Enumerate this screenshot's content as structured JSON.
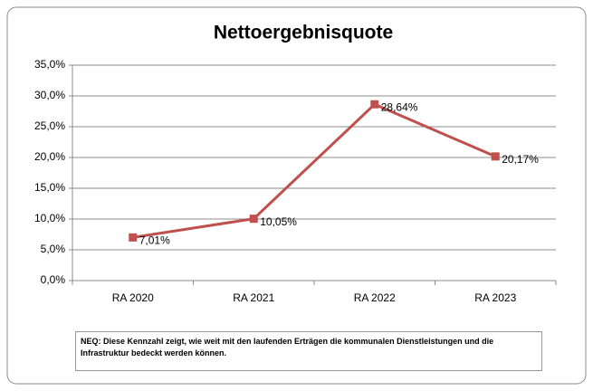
{
  "chart_data": {
    "type": "line",
    "title": "Nettoergebnisquote",
    "categories": [
      "RA 2020",
      "RA 2021",
      "RA 2022",
      "RA 2023"
    ],
    "series": [
      {
        "name": "Nettoergebnisquote",
        "color": "#c0504d",
        "values": [
          7.01,
          10.05,
          28.64,
          20.17
        ],
        "value_labels": [
          "7,01%",
          "10,05%",
          "28,64%",
          "20,17%"
        ]
      }
    ],
    "ylim": [
      0,
      35
    ],
    "yticks": [
      {
        "value": 0,
        "label": "0,0%"
      },
      {
        "value": 5,
        "label": "5,0%"
      },
      {
        "value": 10,
        "label": "10,0%"
      },
      {
        "value": 15,
        "label": "15,0%"
      },
      {
        "value": 20,
        "label": "20,0%"
      },
      {
        "value": 25,
        "label": "25,0%"
      },
      {
        "value": 30,
        "label": "30,0%"
      },
      {
        "value": 35,
        "label": "35,0%"
      }
    ],
    "grid": true,
    "note": "NEQ: Diese Kennzahl zeigt, wie weit mit den laufenden Erträgen die kommunalen Dienstleistungen und die Infrastruktur bedeckt werden können."
  }
}
